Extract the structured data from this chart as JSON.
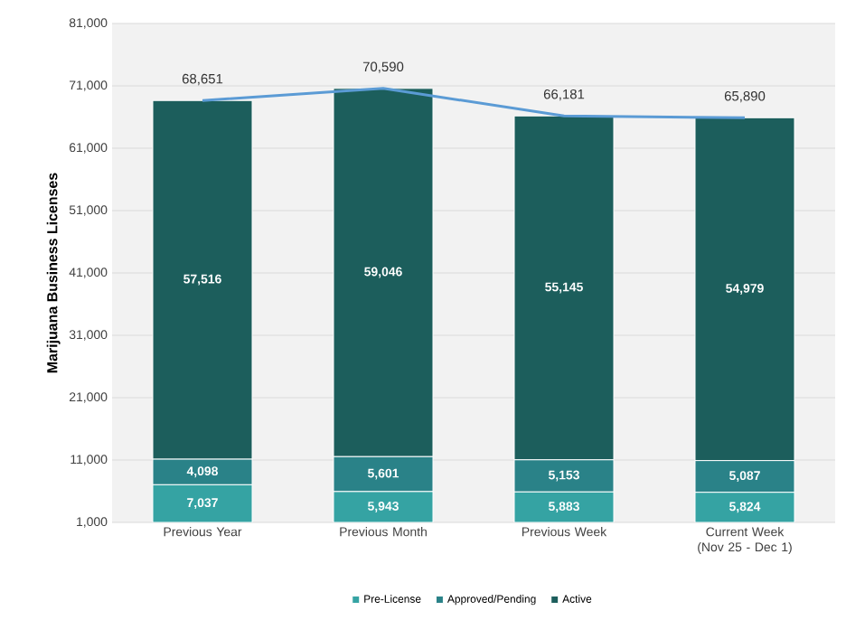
{
  "chart_data": {
    "type": "bar",
    "stacked": true,
    "ylabel": "Marijuana Business Licenses",
    "categories": [
      "Previous Year",
      "Previous Month",
      "Previous Week",
      "Current Week (Nov 25 - Dec 1)"
    ],
    "series": [
      {
        "name": "Pre-License",
        "color": "#35a3a3",
        "values": [
          7037,
          5943,
          5883,
          5824
        ],
        "value_labels": [
          "7,037",
          "5,943",
          "5,883",
          "5,824"
        ]
      },
      {
        "name": "Approved/Pending",
        "color": "#2a8288",
        "values": [
          4098,
          5601,
          5153,
          5087
        ],
        "value_labels": [
          "4,098",
          "5,601",
          "5,153",
          "5,087"
        ]
      },
      {
        "name": "Active",
        "color": "#1c5e5c",
        "values": [
          57516,
          59046,
          55145,
          54979
        ],
        "value_labels": [
          "57,516",
          "59,046",
          "55,145",
          "54,979"
        ]
      },
      {
        "type": "line",
        "color": "#5b9bd5",
        "values": [
          68651,
          70590,
          66181,
          65890
        ],
        "value_labels": [
          "68,651",
          "70,590",
          "66,181",
          "65,890"
        ]
      }
    ],
    "ylim": [
      1000,
      81000
    ],
    "yticks": [
      {
        "value": 1000,
        "label": "1,000"
      },
      {
        "value": 11000,
        "label": "11,000"
      },
      {
        "value": 21000,
        "label": "21,000"
      },
      {
        "value": 31000,
        "label": "31,000"
      },
      {
        "value": 41000,
        "label": "41,000"
      },
      {
        "value": 51000,
        "label": "51,000"
      },
      {
        "value": 61000,
        "label": "61,000"
      },
      {
        "value": 71000,
        "label": "71,000"
      },
      {
        "value": 81000,
        "label": "81,000"
      }
    ],
    "grid": "y",
    "legend": "bottom"
  }
}
